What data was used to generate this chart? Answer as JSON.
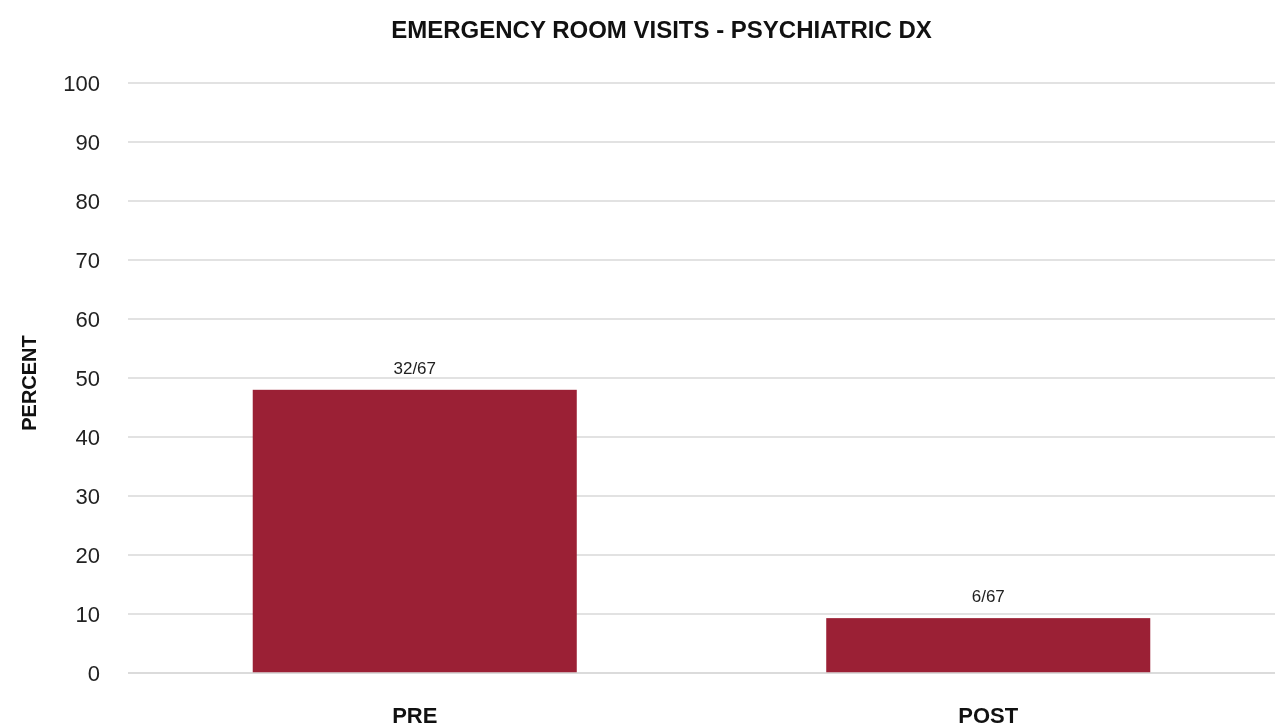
{
  "chart_data": {
    "type": "bar",
    "title": "EMERGENCY ROOM VISITS - PSYCHIATRIC DX",
    "ylabel": "PERCENT",
    "categories": [
      "PRE",
      "POST"
    ],
    "values": [
      48,
      9.3
    ],
    "color": "#9b2035",
    "value_labels": [
      "32/67",
      "6/67"
    ],
    "ylim": [
      0,
      100
    ],
    "yticks": [
      0,
      10,
      20,
      30,
      40,
      50,
      60,
      70,
      80,
      90,
      100
    ],
    "grid": "y"
  }
}
